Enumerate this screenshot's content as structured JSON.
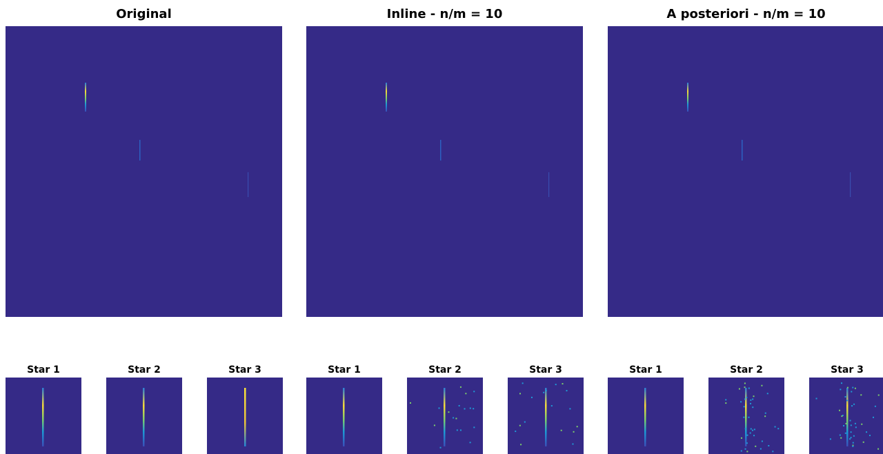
{
  "panels": [
    {
      "title": "Original",
      "stars": [
        "Star 1",
        "Star 2",
        "Star 3"
      ]
    },
    {
      "title": "Inline - n/m = 10",
      "stars": [
        "Star 1",
        "Star 2",
        "Star 3"
      ]
    },
    {
      "title": "A posteriori - n/m = 10",
      "stars": [
        "Star 1",
        "Star 2",
        "Star 3"
      ]
    }
  ]
}
